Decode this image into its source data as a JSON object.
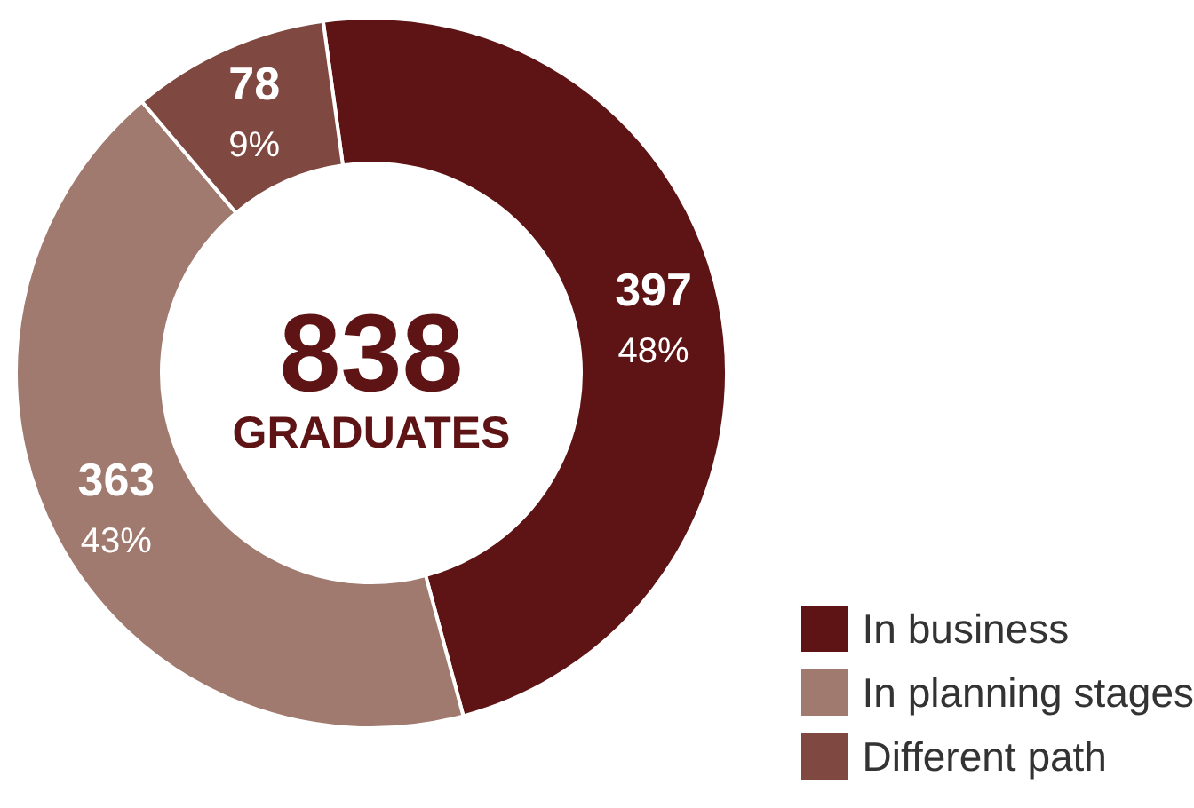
{
  "chart_data": {
    "type": "donut",
    "categories": [
      "In business",
      "In planning stages",
      "Different path"
    ],
    "values": [
      48,
      43,
      9
    ],
    "colors": [
      "#5e1414",
      "#a07a6e",
      "#7f4840"
    ],
    "value_labels": [
      "397\n48%",
      "363\n43%",
      "78\n9%"
    ],
    "annotations": [
      "838",
      "GRADUATES"
    ],
    "legend": "bottom right"
  }
}
